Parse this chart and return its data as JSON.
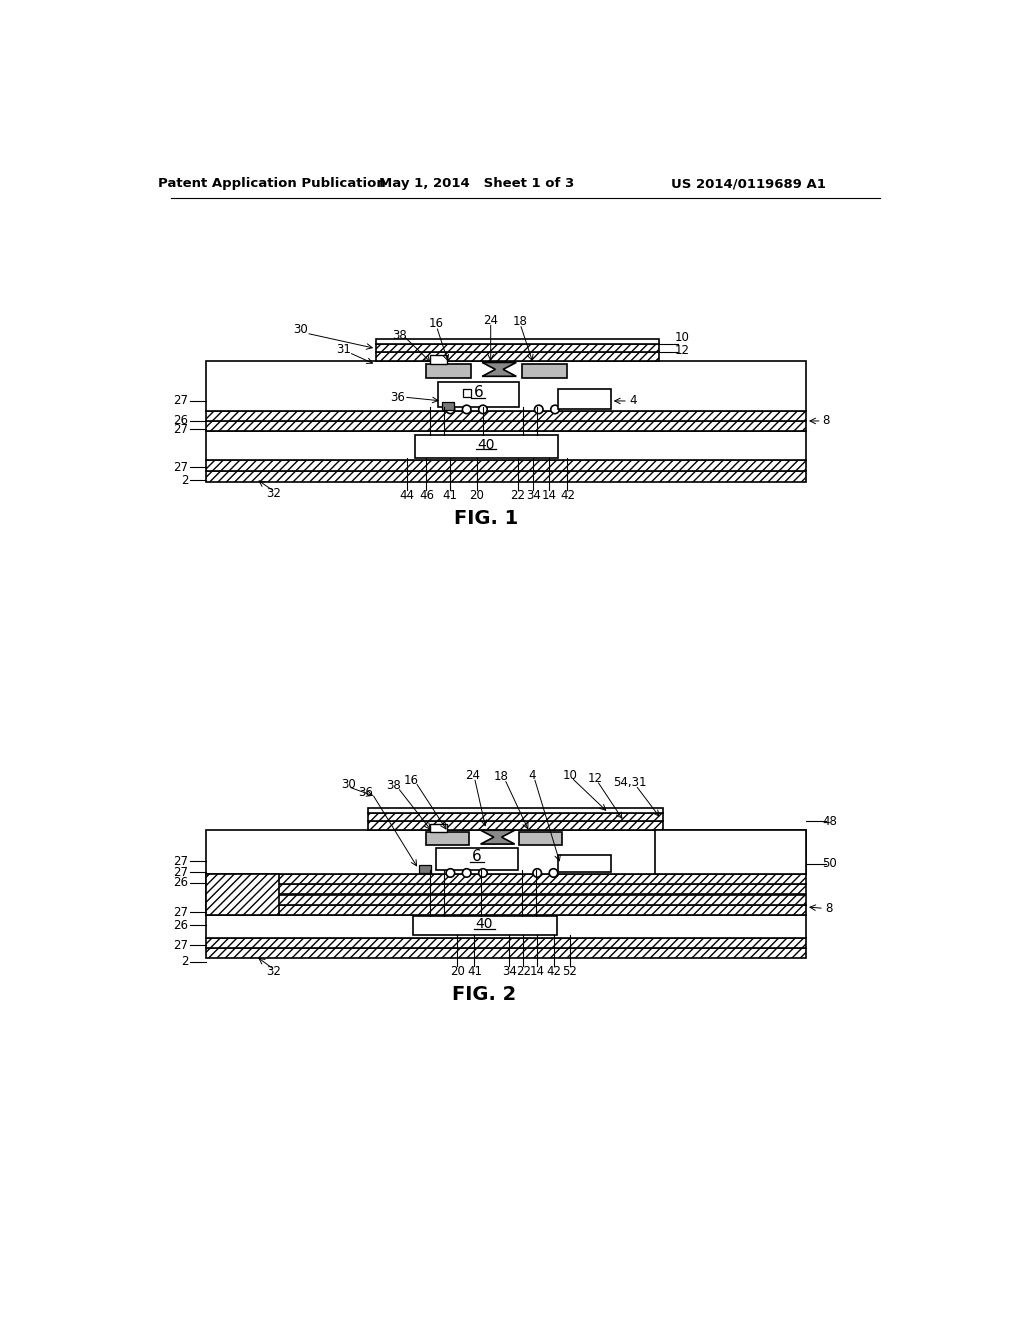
{
  "header_left": "Patent Application Publication",
  "header_mid": "May 1, 2014   Sheet 1 of 3",
  "header_right": "US 2014/0119689 A1",
  "fig1_label": "FIG. 1",
  "fig2_label": "FIG. 2",
  "background_color": "#ffffff"
}
